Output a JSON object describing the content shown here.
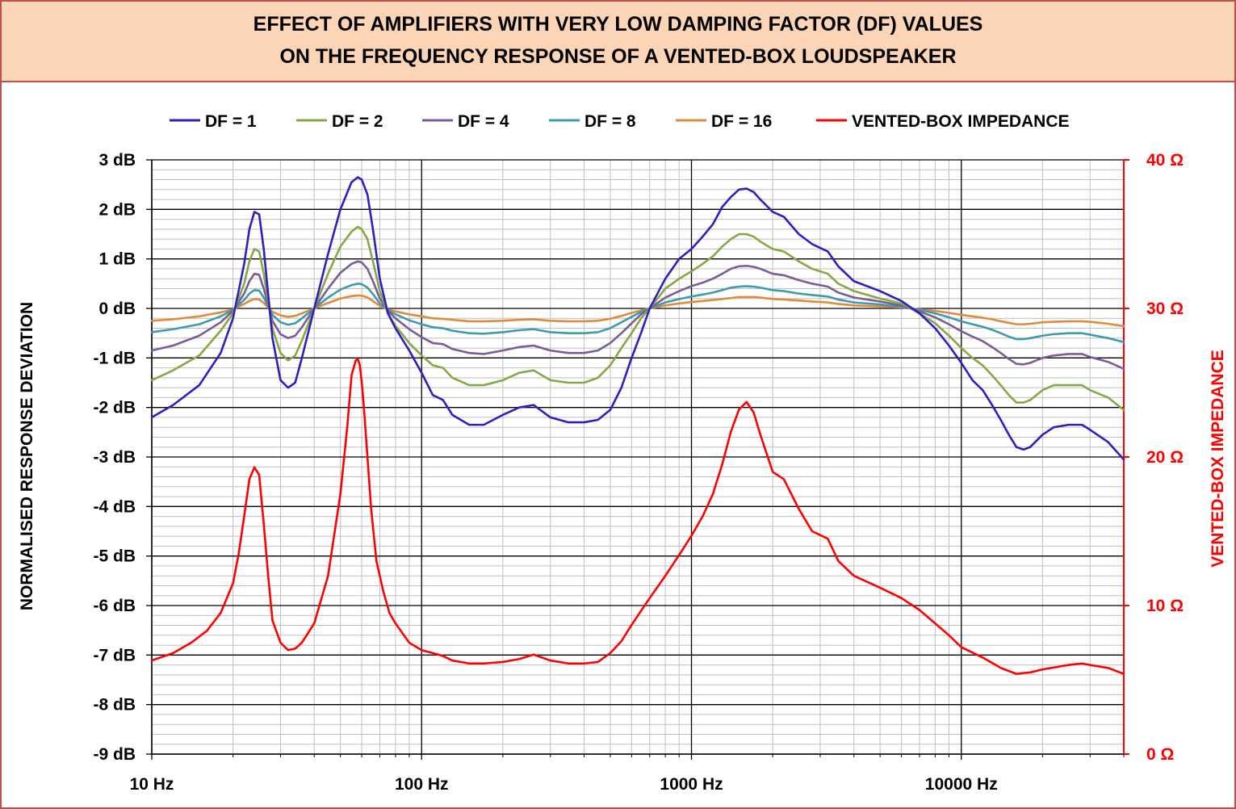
{
  "chart_data": {
    "type": "line",
    "title_lines": [
      "EFFECT OF AMPLIFIERS WITH VERY LOW DAMPING FACTOR (DF) VALUES",
      "ON THE FREQUENCY RESPONSE OF A VENTED-BOX LOUDSPEAKER"
    ],
    "xlabel": "",
    "ylabel": "NORMALISED RESPONSE DEVIATION",
    "y2label": "VENTED-BOX IMPEDANCE",
    "xscale": "log",
    "xlim": [
      10,
      40000
    ],
    "ylim": [
      -9,
      3
    ],
    "y2lim": [
      0,
      40
    ],
    "x_ticks": [
      "10 Hz",
      "100 Hz",
      "1000 Hz",
      "10000 Hz"
    ],
    "y_ticks": [
      "3 dB",
      "2 dB",
      "1 dB",
      "0 dB",
      "-1 dB",
      "-2 dB",
      "-3 dB",
      "-4 dB",
      "-5 dB",
      "-6 dB",
      "-7 dB",
      "-8 dB",
      "-9 dB"
    ],
    "y2_ticks": [
      "40 Ω",
      "30 Ω",
      "20 Ω",
      "10 Ω",
      "0 Ω"
    ],
    "grid": true,
    "legend_position": "top",
    "colors": {
      "df1": "#2e1fbf",
      "df2": "#86a845",
      "df4": "#7a5c96",
      "df8": "#3e9aae",
      "df16": "#e08a3c",
      "impedance": "#ff0000",
      "right_axis": "#ff0000"
    },
    "series": [
      {
        "name": "DF = 1",
        "axis": "left",
        "color_key": "df1",
        "x": [
          10,
          12,
          15,
          18,
          20,
          22,
          23,
          24,
          25,
          26,
          28,
          30,
          32,
          34,
          36,
          40,
          45,
          50,
          55,
          58,
          60,
          63,
          66,
          70,
          75,
          80,
          90,
          100,
          110,
          120,
          130,
          150,
          170,
          200,
          230,
          260,
          300,
          350,
          400,
          450,
          500,
          550,
          600,
          650,
          700,
          800,
          900,
          1000,
          1100,
          1200,
          1300,
          1400,
          1500,
          1600,
          1700,
          1800,
          2000,
          2200,
          2500,
          2800,
          3200,
          3500,
          4000,
          5000,
          6000,
          7000,
          8000,
          9000,
          10000,
          11000,
          12000,
          13000,
          14000,
          15000,
          16000,
          17000,
          18000,
          20000,
          22000,
          25000,
          28000,
          30000,
          35000,
          40000
        ],
        "y": [
          -2.2,
          -1.95,
          -1.55,
          -0.9,
          -0.2,
          0.9,
          1.6,
          1.95,
          1.9,
          1.2,
          -0.6,
          -1.45,
          -1.6,
          -1.5,
          -1.0,
          0.0,
          1.1,
          2.0,
          2.55,
          2.65,
          2.6,
          2.3,
          1.6,
          0.6,
          -0.1,
          -0.4,
          -0.85,
          -1.3,
          -1.75,
          -1.85,
          -2.15,
          -2.35,
          -2.35,
          -2.15,
          -2.0,
          -1.95,
          -2.2,
          -2.3,
          -2.3,
          -2.25,
          -2.05,
          -1.6,
          -1.0,
          -0.5,
          0.0,
          0.6,
          1.0,
          1.2,
          1.45,
          1.7,
          2.05,
          2.25,
          2.4,
          2.42,
          2.35,
          2.2,
          1.95,
          1.85,
          1.5,
          1.3,
          1.15,
          0.85,
          0.55,
          0.35,
          0.15,
          -0.1,
          -0.4,
          -0.75,
          -1.1,
          -1.45,
          -1.65,
          -1.95,
          -2.25,
          -2.55,
          -2.8,
          -2.85,
          -2.8,
          -2.55,
          -2.4,
          -2.35,
          -2.35,
          -2.45,
          -2.7,
          -3.05
        ]
      },
      {
        "name": "DF = 2",
        "axis": "left",
        "color_key": "df2",
        "x": [
          10,
          12,
          15,
          18,
          20,
          22,
          23,
          24,
          25,
          26,
          28,
          30,
          32,
          34,
          36,
          40,
          45,
          50,
          55,
          58,
          60,
          63,
          66,
          70,
          75,
          80,
          90,
          100,
          110,
          120,
          130,
          150,
          170,
          200,
          230,
          260,
          300,
          350,
          400,
          450,
          500,
          550,
          600,
          650,
          700,
          800,
          900,
          1000,
          1100,
          1200,
          1300,
          1400,
          1500,
          1600,
          1700,
          1800,
          2000,
          2200,
          2500,
          2800,
          3200,
          3500,
          4000,
          5000,
          6000,
          7000,
          8000,
          9000,
          10000,
          11000,
          12000,
          13000,
          14000,
          15000,
          16000,
          17000,
          18000,
          20000,
          22000,
          25000,
          28000,
          30000,
          35000,
          40000
        ],
        "y": [
          -1.45,
          -1.25,
          -0.95,
          -0.45,
          -0.1,
          0.5,
          0.95,
          1.2,
          1.15,
          0.7,
          -0.4,
          -0.9,
          -1.05,
          -0.95,
          -0.65,
          0.0,
          0.7,
          1.25,
          1.55,
          1.65,
          1.6,
          1.4,
          0.95,
          0.35,
          -0.1,
          -0.35,
          -0.7,
          -0.95,
          -1.15,
          -1.2,
          -1.4,
          -1.55,
          -1.55,
          -1.45,
          -1.3,
          -1.25,
          -1.45,
          -1.5,
          -1.5,
          -1.4,
          -1.15,
          -0.8,
          -0.5,
          -0.2,
          0.0,
          0.4,
          0.6,
          0.75,
          0.9,
          1.05,
          1.25,
          1.4,
          1.5,
          1.5,
          1.45,
          1.35,
          1.2,
          1.15,
          0.95,
          0.8,
          0.7,
          0.5,
          0.35,
          0.2,
          0.1,
          -0.1,
          -0.3,
          -0.55,
          -0.8,
          -1.0,
          -1.15,
          -1.35,
          -1.55,
          -1.75,
          -1.9,
          -1.9,
          -1.85,
          -1.65,
          -1.55,
          -1.55,
          -1.55,
          -1.65,
          -1.8,
          -2.05
        ]
      },
      {
        "name": "DF = 4",
        "axis": "left",
        "color_key": "df4",
        "x": [
          10,
          12,
          15,
          18,
          20,
          22,
          23,
          24,
          25,
          26,
          28,
          30,
          32,
          34,
          36,
          40,
          45,
          50,
          55,
          58,
          60,
          63,
          66,
          70,
          75,
          80,
          90,
          100,
          110,
          120,
          130,
          150,
          170,
          200,
          230,
          260,
          300,
          350,
          400,
          450,
          500,
          550,
          600,
          650,
          700,
          800,
          900,
          1000,
          1100,
          1200,
          1300,
          1400,
          1500,
          1600,
          1700,
          1800,
          2000,
          2200,
          2500,
          2800,
          3200,
          3500,
          4000,
          5000,
          6000,
          7000,
          8000,
          9000,
          10000,
          11000,
          12000,
          13000,
          14000,
          15000,
          16000,
          17000,
          18000,
          20000,
          22000,
          25000,
          28000,
          30000,
          35000,
          40000
        ],
        "y": [
          -0.85,
          -0.75,
          -0.55,
          -0.28,
          -0.05,
          0.3,
          0.55,
          0.7,
          0.68,
          0.4,
          -0.25,
          -0.52,
          -0.6,
          -0.55,
          -0.38,
          0.0,
          0.4,
          0.72,
          0.9,
          0.95,
          0.93,
          0.8,
          0.55,
          0.2,
          -0.05,
          -0.2,
          -0.42,
          -0.58,
          -0.7,
          -0.72,
          -0.82,
          -0.9,
          -0.92,
          -0.85,
          -0.78,
          -0.75,
          -0.85,
          -0.9,
          -0.9,
          -0.85,
          -0.7,
          -0.5,
          -0.3,
          -0.12,
          0.0,
          0.22,
          0.35,
          0.45,
          0.52,
          0.6,
          0.7,
          0.8,
          0.85,
          0.86,
          0.84,
          0.8,
          0.7,
          0.67,
          0.57,
          0.5,
          0.44,
          0.32,
          0.22,
          0.14,
          0.06,
          -0.06,
          -0.18,
          -0.32,
          -0.46,
          -0.57,
          -0.66,
          -0.78,
          -0.9,
          -1.02,
          -1.12,
          -1.13,
          -1.1,
          -1.0,
          -0.95,
          -0.92,
          -0.92,
          -0.98,
          -1.08,
          -1.22
        ]
      },
      {
        "name": "DF = 8",
        "axis": "left",
        "color_key": "df8",
        "x": [
          10,
          12,
          15,
          18,
          20,
          22,
          23,
          24,
          25,
          26,
          28,
          30,
          32,
          34,
          36,
          40,
          45,
          50,
          55,
          58,
          60,
          63,
          66,
          70,
          75,
          80,
          90,
          100,
          110,
          120,
          130,
          150,
          170,
          200,
          230,
          260,
          300,
          350,
          400,
          450,
          500,
          550,
          600,
          650,
          700,
          800,
          900,
          1000,
          1100,
          1200,
          1300,
          1400,
          1500,
          1600,
          1700,
          1800,
          2000,
          2200,
          2500,
          2800,
          3200,
          3500,
          4000,
          5000,
          6000,
          7000,
          8000,
          9000,
          10000,
          11000,
          12000,
          13000,
          14000,
          15000,
          16000,
          17000,
          18000,
          20000,
          22000,
          25000,
          28000,
          30000,
          35000,
          40000
        ],
        "y": [
          -0.48,
          -0.42,
          -0.32,
          -0.16,
          -0.03,
          0.17,
          0.3,
          0.37,
          0.36,
          0.22,
          -0.13,
          -0.28,
          -0.33,
          -0.3,
          -0.2,
          0.0,
          0.22,
          0.38,
          0.47,
          0.5,
          0.49,
          0.42,
          0.29,
          0.1,
          -0.03,
          -0.12,
          -0.24,
          -0.32,
          -0.38,
          -0.4,
          -0.45,
          -0.5,
          -0.51,
          -0.48,
          -0.44,
          -0.42,
          -0.48,
          -0.5,
          -0.5,
          -0.48,
          -0.4,
          -0.28,
          -0.17,
          -0.07,
          0.0,
          0.12,
          0.19,
          0.24,
          0.28,
          0.32,
          0.37,
          0.42,
          0.44,
          0.45,
          0.44,
          0.42,
          0.37,
          0.35,
          0.3,
          0.27,
          0.24,
          0.18,
          0.12,
          0.08,
          0.03,
          -0.03,
          -0.1,
          -0.18,
          -0.26,
          -0.32,
          -0.37,
          -0.43,
          -0.5,
          -0.57,
          -0.62,
          -0.62,
          -0.6,
          -0.55,
          -0.52,
          -0.5,
          -0.5,
          -0.53,
          -0.6,
          -0.68
        ]
      },
      {
        "name": "DF = 16",
        "axis": "left",
        "color_key": "df16",
        "x": [
          10,
          12,
          15,
          18,
          20,
          22,
          23,
          24,
          25,
          26,
          28,
          30,
          32,
          34,
          36,
          40,
          45,
          50,
          55,
          58,
          60,
          63,
          66,
          70,
          75,
          80,
          90,
          100,
          110,
          120,
          130,
          150,
          170,
          200,
          230,
          260,
          300,
          350,
          400,
          450,
          500,
          550,
          600,
          650,
          700,
          800,
          900,
          1000,
          1100,
          1200,
          1300,
          1400,
          1500,
          1600,
          1700,
          1800,
          2000,
          2200,
          2500,
          2800,
          3200,
          3500,
          4000,
          5000,
          6000,
          7000,
          8000,
          9000,
          10000,
          11000,
          12000,
          13000,
          14000,
          15000,
          16000,
          17000,
          18000,
          20000,
          22000,
          25000,
          28000,
          30000,
          35000,
          40000
        ],
        "y": [
          -0.25,
          -0.22,
          -0.16,
          -0.08,
          -0.02,
          0.09,
          0.15,
          0.19,
          0.18,
          0.11,
          -0.07,
          -0.14,
          -0.17,
          -0.15,
          -0.1,
          0.0,
          0.11,
          0.2,
          0.25,
          0.26,
          0.26,
          0.22,
          0.15,
          0.05,
          -0.02,
          -0.06,
          -0.12,
          -0.16,
          -0.2,
          -0.21,
          -0.23,
          -0.26,
          -0.26,
          -0.25,
          -0.23,
          -0.22,
          -0.25,
          -0.26,
          -0.26,
          -0.25,
          -0.21,
          -0.15,
          -0.09,
          -0.04,
          0.0,
          0.06,
          0.1,
          0.13,
          0.15,
          0.17,
          0.19,
          0.21,
          0.23,
          0.23,
          0.23,
          0.22,
          0.19,
          0.18,
          0.16,
          0.14,
          0.12,
          0.09,
          0.06,
          0.04,
          0.02,
          -0.02,
          -0.05,
          -0.09,
          -0.13,
          -0.16,
          -0.19,
          -0.22,
          -0.26,
          -0.29,
          -0.32,
          -0.32,
          -0.31,
          -0.28,
          -0.27,
          -0.26,
          -0.26,
          -0.27,
          -0.31,
          -0.36
        ]
      },
      {
        "name": "VENTED-BOX IMPEDANCE",
        "axis": "right",
        "color_key": "impedance",
        "x": [
          10,
          12,
          14,
          16,
          18,
          20,
          21,
          22,
          23,
          24,
          25,
          26,
          27,
          28,
          30,
          32,
          34,
          36,
          40,
          45,
          50,
          53,
          55,
          57,
          58,
          59,
          60,
          61,
          63,
          65,
          68,
          72,
          76,
          80,
          90,
          100,
          110,
          120,
          130,
          150,
          170,
          200,
          230,
          260,
          300,
          350,
          400,
          450,
          500,
          550,
          600,
          700,
          800,
          900,
          1000,
          1100,
          1200,
          1300,
          1400,
          1500,
          1600,
          1700,
          1800,
          2000,
          2200,
          2500,
          2800,
          3200,
          3500,
          4000,
          5000,
          6000,
          7000,
          8000,
          9000,
          10000,
          12000,
          14000,
          16000,
          18000,
          20000,
          25000,
          28000,
          30000,
          35000,
          40000
        ],
        "y": [
          6.3,
          6.8,
          7.5,
          8.3,
          9.5,
          11.5,
          13.5,
          16.0,
          18.5,
          19.3,
          18.8,
          15.5,
          12.0,
          9.0,
          7.5,
          7.0,
          7.1,
          7.5,
          8.8,
          12.0,
          17.5,
          22.0,
          25.5,
          26.5,
          26.6,
          26.2,
          25.0,
          23.5,
          20.0,
          16.5,
          13.0,
          11.0,
          9.5,
          8.8,
          7.5,
          7.0,
          6.8,
          6.6,
          6.3,
          6.1,
          6.1,
          6.2,
          6.4,
          6.7,
          6.3,
          6.1,
          6.1,
          6.2,
          6.8,
          7.6,
          8.7,
          10.5,
          12.0,
          13.4,
          14.7,
          16.0,
          17.5,
          19.5,
          21.7,
          23.2,
          23.7,
          23.0,
          21.5,
          19.0,
          18.5,
          16.5,
          15.0,
          14.5,
          13.0,
          12.0,
          11.2,
          10.5,
          9.7,
          8.8,
          8.0,
          7.2,
          6.5,
          5.8,
          5.4,
          5.5,
          5.7,
          6.0,
          6.1,
          6.0,
          5.8,
          5.4
        ]
      }
    ]
  }
}
